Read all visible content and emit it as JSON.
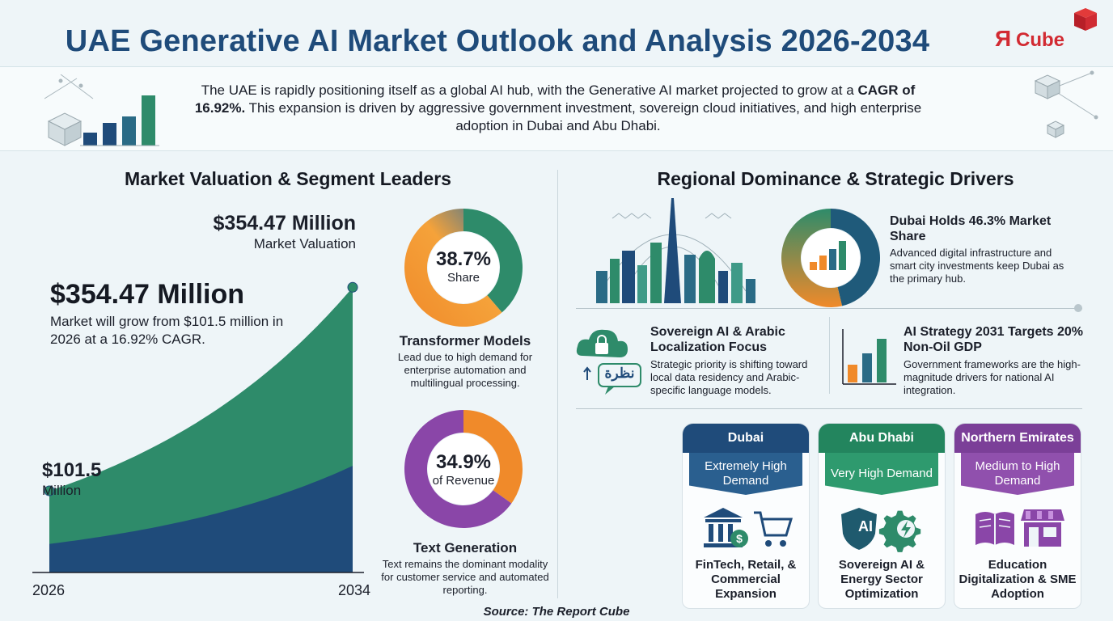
{
  "header": {
    "title": "UAE Generative AI Market Outlook and Analysis 2026-2034",
    "logo_text_r": "Я",
    "logo_text_cube": "Cube",
    "intro_pre": "The UAE is rapidly positioning itself as a global AI hub, with the Generative AI market projected to grow at a ",
    "intro_cagr": "CAGR of 16.92%.",
    "intro_post": " This expansion is driven by aggressive government investment, sovereign cloud initiatives, and high enterprise adoption in Dubai and Abu Dhabi."
  },
  "left": {
    "heading": "Market Valuation & Segment Leaders",
    "top_value": "$354.47 Million",
    "top_label": "Market Valuation",
    "big_value": "$354.47 Million",
    "big_desc": "Market will grow from $101.5 million in 2026 at a 16.92% CAGR.",
    "start_value": "$101.5",
    "start_unit": "Million",
    "segments": [
      {
        "percent": "38.7%",
        "sub": "Share",
        "title": "Transformer Models",
        "desc": "Lead due to high demand for enterprise automation and multilingual processing."
      },
      {
        "percent": "34.9%",
        "sub": "of Revenue",
        "title": "Text Generation",
        "desc": "Text remains the dominant modality for customer service and automated reporting."
      }
    ]
  },
  "right": {
    "heading": "Regional Dominance & Strategic Drivers",
    "dubai_title": "Dubai Holds 46.3% Market Share",
    "dubai_desc": "Advanced digital infrastructure and smart city investments keep Dubai as the primary hub.",
    "sovereign_title": "Sovereign AI & Arabic Localization Focus",
    "sovereign_desc": "Strategic priority is shifting toward local data residency and Arabic-specific language models.",
    "arabic_word": "نظرة",
    "strategy_title": "AI Strategy 2031 Targets 20% Non-Oil GDP",
    "strategy_desc": "Government frameworks are the high-magnitude drivers for national AI integration.",
    "emirates": [
      {
        "name": "Dubai",
        "demand": "Extremely High Demand",
        "focus": "FinTech, Retail, & Commercial Expansion",
        "color": "#1f4b7a"
      },
      {
        "name": "Abu Dhabi",
        "demand": "Very High Demand",
        "focus": "Sovereign AI & Energy Sector Optimization",
        "color": "#23855e"
      },
      {
        "name": "Northern Emirates",
        "demand": "Medium to High Demand",
        "focus": "Education Digitalization & SME Adoption",
        "color": "#7b3f98"
      }
    ],
    "ai_badge": "AI"
  },
  "source": "Source: The Report Cube",
  "colors": {
    "navy": "#1f4b7a",
    "green": "#2e8b6a",
    "orange": "#f08a2a",
    "purple": "#8a46a8"
  },
  "chart_data": [
    {
      "type": "area",
      "title": "",
      "x": [
        2026,
        2034
      ],
      "tick_labels": [
        "2026",
        "2034"
      ],
      "series": [
        {
          "name": "",
          "values": [
            101.5,
            354.47
          ]
        }
      ],
      "start_label": "$101.5 Million",
      "end_label": "$354.47 Million",
      "cagr": "16.92%"
    },
    {
      "type": "pie",
      "title": "Transformer Models",
      "slices": [
        {
          "label": "Transformer Models",
          "value": 38.7
        },
        {
          "label": "",
          "value": 61.3
        }
      ]
    },
    {
      "type": "pie",
      "title": "Text Generation",
      "slices": [
        {
          "label": "Text Generation",
          "value": 34.9
        },
        {
          "label": "",
          "value": 65.1
        }
      ]
    },
    {
      "type": "pie",
      "title": "Dubai",
      "slices": [
        {
          "label": "Dubai",
          "value": 46.3
        },
        {
          "label": "",
          "value": 53.7
        }
      ]
    }
  ]
}
